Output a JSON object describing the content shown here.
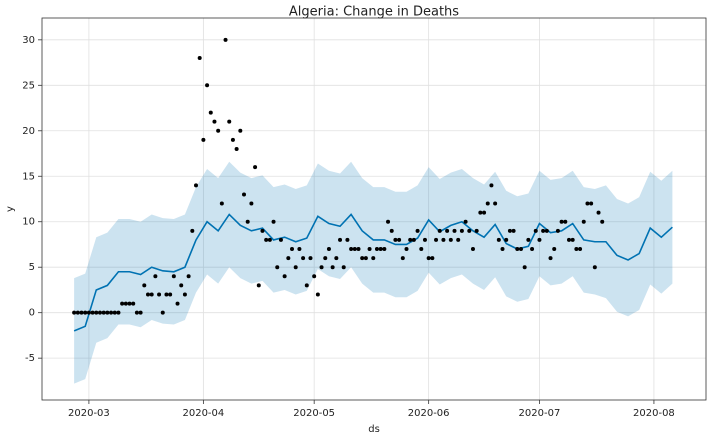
{
  "chart_data": {
    "type": "forecast",
    "title": "Algeria: Change in Deaths",
    "x_label": "ds",
    "y_label": "y",
    "xlim": [
      -12.7,
      167.1
    ],
    "ylim": [
      -9.6,
      32.4
    ],
    "xticks": [
      {
        "value": 0,
        "label": "2020-03"
      },
      {
        "value": 31,
        "label": "2020-04"
      },
      {
        "value": 61,
        "label": "2020-05"
      },
      {
        "value": 92,
        "label": "2020-06"
      },
      {
        "value": 122,
        "label": "2020-07"
      },
      {
        "value": 153,
        "label": "2020-08"
      }
    ],
    "yticks": [
      -5,
      0,
      5,
      10,
      15,
      20,
      25,
      30
    ],
    "grid": true,
    "points": {
      "color": "#000000",
      "x": [
        -4,
        -3,
        -2,
        -1,
        0,
        1,
        2,
        3,
        4,
        5,
        6,
        7,
        8,
        9,
        10,
        11,
        12,
        13,
        14,
        15,
        16,
        17,
        18,
        19,
        20,
        21,
        22,
        23,
        24,
        25,
        26,
        27,
        28,
        29,
        30,
        31,
        32,
        33,
        34,
        35,
        36,
        37,
        38,
        39,
        40,
        41,
        42,
        43,
        44,
        45,
        46,
        47,
        48,
        49,
        50,
        51,
        52,
        53,
        54,
        55,
        56,
        57,
        58,
        59,
        60,
        61,
        62,
        63,
        64,
        65,
        66,
        67,
        68,
        69,
        70,
        71,
        72,
        73,
        74,
        75,
        76,
        77,
        78,
        79,
        80,
        81,
        82,
        83,
        84,
        85,
        86,
        87,
        88,
        89,
        90,
        91,
        92,
        93,
        94,
        95,
        96,
        97,
        98,
        99,
        100,
        101,
        102,
        103,
        104,
        105,
        106,
        107,
        108,
        109,
        110,
        111,
        112,
        113,
        114,
        115,
        116,
        117,
        118,
        119,
        120,
        121,
        122,
        123,
        124,
        125,
        126,
        127,
        128,
        129,
        130,
        131,
        132,
        133,
        134,
        135,
        136,
        137,
        138,
        139
      ],
      "values": [
        0,
        0,
        0,
        0,
        0,
        0,
        0,
        0,
        0,
        0,
        0,
        0,
        0,
        1,
        1,
        1,
        1,
        0,
        0,
        3,
        2,
        2,
        4,
        2,
        0,
        2,
        2,
        4,
        1,
        3,
        2,
        4,
        9,
        14,
        28,
        19,
        25,
        22,
        21,
        20,
        12,
        30,
        21,
        19,
        18,
        20,
        13,
        10,
        12,
        16,
        3,
        9,
        8,
        8,
        10,
        5,
        8,
        4,
        6,
        7,
        5,
        7,
        6,
        3,
        6,
        4,
        2,
        5,
        6,
        7,
        5,
        6,
        8,
        5,
        8,
        7,
        7,
        7,
        6,
        6,
        7,
        6,
        7,
        7,
        7,
        10,
        9,
        8,
        8,
        6,
        7,
        8,
        8,
        9,
        7,
        8,
        6,
        6,
        8,
        9,
        8,
        9,
        8,
        9,
        8,
        9,
        10,
        9,
        7,
        9,
        11,
        11,
        12,
        14,
        12,
        8,
        7,
        8,
        9,
        9,
        7,
        7,
        5,
        8,
        7,
        9,
        8,
        9,
        9,
        6,
        7,
        9,
        10,
        10,
        8,
        8,
        7,
        7,
        10,
        12,
        12,
        5,
        11,
        10
      ]
    },
    "forecast": {
      "color": "#0072b2",
      "x": [
        -4,
        -1,
        2,
        5,
        8,
        11,
        14,
        17,
        20,
        23,
        26,
        29,
        32,
        35,
        38,
        41,
        44,
        47,
        50,
        53,
        56,
        59,
        62,
        65,
        68,
        71,
        74,
        77,
        80,
        83,
        86,
        89,
        92,
        95,
        98,
        101,
        104,
        107,
        110,
        113,
        116,
        119,
        122,
        125,
        128,
        131,
        134,
        137,
        140,
        143,
        146,
        149,
        152,
        155,
        158
      ],
      "values": [
        -2,
        -1.5,
        2.5,
        3,
        4.5,
        4.5,
        4.2,
        5,
        4.6,
        4.5,
        5,
        8,
        10,
        9,
        10.8,
        9.6,
        9,
        9.3,
        8,
        8.3,
        7.8,
        8.2,
        10.6,
        9.8,
        9.5,
        10.8,
        9,
        8,
        8,
        7.5,
        7.5,
        8.2,
        10.2,
        8.9,
        9.6,
        10,
        9,
        8.3,
        9.7,
        7.6,
        7,
        7.3,
        9.8,
        8.8,
        9,
        9.8,
        8,
        7.8,
        7.8,
        6.3,
        5.8,
        6.5,
        9.3,
        8.3,
        9.4
      ],
      "lower": [
        -7.8,
        -7.3,
        -3.3,
        -2.8,
        -1.3,
        -1.3,
        -1.6,
        -0.8,
        -1.2,
        -1.3,
        -0.8,
        2.2,
        4.2,
        3.2,
        5.0,
        3.8,
        3.2,
        3.5,
        2.2,
        2.5,
        2.0,
        2.4,
        4.8,
        4.0,
        3.7,
        5.0,
        3.2,
        2.2,
        2.2,
        1.7,
        1.7,
        2.4,
        4.4,
        3.1,
        3.8,
        4.2,
        3.2,
        2.5,
        3.9,
        1.8,
        1.2,
        1.5,
        4.0,
        3.0,
        3.2,
        4.0,
        2.2,
        2.0,
        1.6,
        0.1,
        -0.4,
        0.3,
        3.1,
        2.1,
        3.2
      ],
      "upper": [
        3.8,
        4.3,
        8.3,
        8.8,
        10.3,
        10.3,
        10.0,
        10.8,
        10.4,
        10.3,
        10.8,
        13.8,
        15.8,
        14.8,
        16.6,
        15.4,
        14.8,
        15.1,
        13.8,
        14.1,
        13.6,
        14.0,
        16.4,
        15.6,
        15.3,
        16.6,
        14.8,
        13.8,
        13.8,
        13.3,
        13.3,
        14.0,
        16.0,
        14.7,
        15.4,
        15.8,
        14.8,
        14.1,
        15.5,
        13.4,
        12.8,
        13.1,
        15.6,
        14.6,
        14.8,
        15.6,
        13.8,
        13.6,
        14.0,
        12.5,
        12.0,
        12.7,
        15.5,
        14.5,
        15.6
      ]
    }
  }
}
